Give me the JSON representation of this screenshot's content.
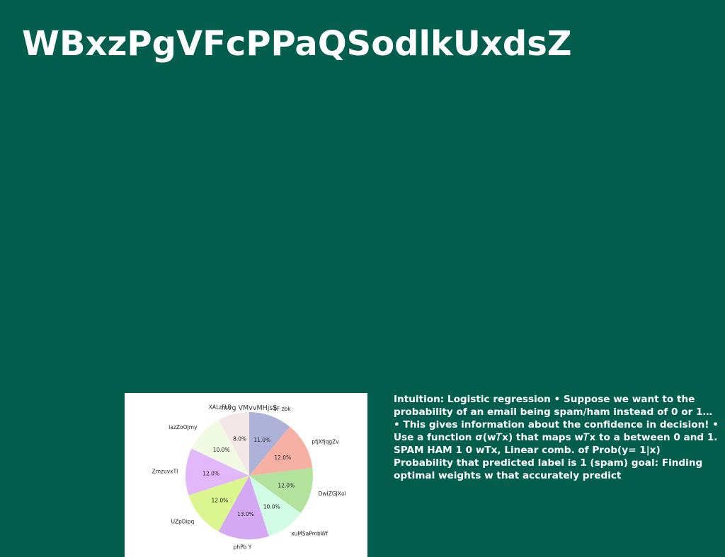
{
  "slide": {
    "title": "WBxzPgVFcPPaQSodlkUxdsZ",
    "body_text": "Intuition: Logistic regression • Suppose we want to the probability of an email being spam/ham instead of 0 or 1… • This gives information about the confidence in decision! • Use a function σ(w𝑇x) that maps w𝑇x to a between 0 and 1. SPAM HAM 1 0 wTx, Linear comb. of Prob(y= 1|x) Probability that predicted label is 1 (spam) goal: Finding optimal weights w that accurately predict"
  },
  "colors": {
    "background": "#045e4d",
    "text": "#ffffff"
  },
  "chart_data": {
    "type": "pie",
    "title": "mvg VMvvMHjsS",
    "start_angle_deg": 90,
    "direction": "clockwise",
    "labels": [
      "SF zbk",
      "pfjXfjqgZv",
      "DwIZGJXol",
      "xuMSaPmbWf",
      "phPb Y",
      "UZpDipq",
      "ZmzuvxTI",
      "iazZoOJmy",
      "XALzFLR"
    ],
    "values": [
      11.0,
      12.0,
      12.0,
      10.0,
      13.0,
      12.0,
      12.0,
      10.0,
      8.0
    ],
    "value_labels": [
      "11.0%",
      "12.0%",
      "12.0%",
      "10.0%",
      "13.0%",
      "12.0%",
      "12.0%",
      "10.0%",
      "8.0%"
    ],
    "colors": [
      "#aeb2d8",
      "#f7b0a4",
      "#b3e29c",
      "#d2fbe6",
      "#d5a8f4",
      "#dbf58f",
      "#e2b8fb",
      "#f1fbe3",
      "#f2e6e7"
    ]
  }
}
